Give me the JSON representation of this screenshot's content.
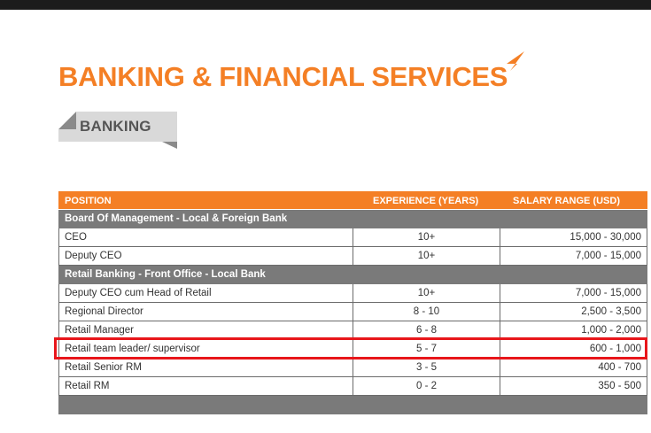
{
  "title": "BANKING & FINANCIAL SERVICES",
  "section_tag": "BANKING",
  "colors": {
    "accent_orange": "#f47f25",
    "group_gray": "#7a7a7a",
    "highlight_red": "#e8161b"
  },
  "table": {
    "headers": [
      "POSITION",
      "EXPERIENCE (YEARS)",
      "SALARY RANGE (USD)"
    ],
    "groups": [
      {
        "label": "Board Of Management - Local & Foreign Bank",
        "rows": [
          {
            "position": "CEO",
            "experience": "10+",
            "salary": "15,000 - 30,000"
          },
          {
            "position": "Deputy CEO",
            "experience": "10+",
            "salary": "7,000 - 15,000"
          }
        ]
      },
      {
        "label": "Retail Banking - Front Office - Local Bank",
        "rows": [
          {
            "position": "Deputy CEO cum Head of Retail",
            "experience": "10+",
            "salary": "7,000 - 15,000"
          },
          {
            "position": "Regional Director",
            "experience": "8 - 10",
            "salary": "2,500 - 3,500"
          },
          {
            "position": "Retail Manager",
            "experience": "6 - 8",
            "salary": "1,000 - 2,000"
          },
          {
            "position": "Retail team leader/ supervisor",
            "experience": "5 - 7",
            "salary": "600 - 1,000"
          },
          {
            "position": "Retail Senior RM",
            "experience": "3 - 5",
            "salary": "400 - 700"
          },
          {
            "position": "Retail RM",
            "experience": "0 - 2",
            "salary": "350 - 500"
          }
        ]
      }
    ]
  }
}
